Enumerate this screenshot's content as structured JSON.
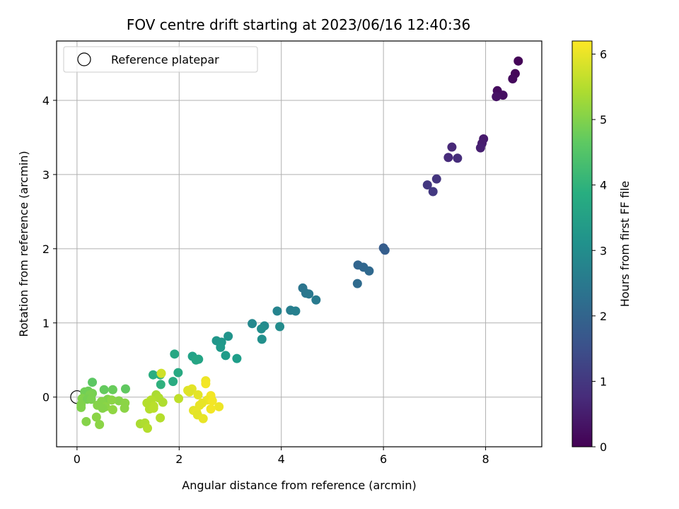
{
  "chart_data": {
    "type": "scatter",
    "title": "FOV centre drift starting at 2023/06/16 12:40:36",
    "xlabel": "Angular distance from reference (arcmin)",
    "ylabel": "Rotation from reference (arcmin)",
    "xlim": [
      -0.4,
      9.1
    ],
    "ylim": [
      -0.67,
      4.8
    ],
    "x_ticks": [
      0,
      2,
      4,
      6,
      8
    ],
    "y_ticks": [
      0,
      1,
      2,
      3,
      4
    ],
    "grid": true,
    "legend": {
      "placement": "top-left",
      "entries": [
        "Reference platepar"
      ]
    },
    "reference_point": {
      "x": 0,
      "y": 0
    },
    "colorbar": {
      "label": "Hours from first FF file",
      "colormap": "viridis",
      "range": [
        0,
        6.2
      ],
      "ticks": [
        0,
        1,
        2,
        3,
        4,
        5,
        6
      ]
    },
    "points": [
      {
        "x": 8.64,
        "y": 4.53,
        "c": 0.05
      },
      {
        "x": 8.58,
        "y": 4.36,
        "c": 0.1
      },
      {
        "x": 8.53,
        "y": 4.29,
        "c": 0.15
      },
      {
        "x": 8.23,
        "y": 4.13,
        "c": 0.2
      },
      {
        "x": 8.34,
        "y": 4.07,
        "c": 0.25
      },
      {
        "x": 8.21,
        "y": 4.05,
        "c": 0.3
      },
      {
        "x": 7.96,
        "y": 3.48,
        "c": 0.45
      },
      {
        "x": 7.93,
        "y": 3.42,
        "c": 0.5
      },
      {
        "x": 7.9,
        "y": 3.36,
        "c": 0.55
      },
      {
        "x": 7.34,
        "y": 3.37,
        "c": 0.7
      },
      {
        "x": 7.27,
        "y": 3.23,
        "c": 0.75
      },
      {
        "x": 7.45,
        "y": 3.22,
        "c": 0.8
      },
      {
        "x": 7.04,
        "y": 2.94,
        "c": 0.95
      },
      {
        "x": 6.86,
        "y": 2.86,
        "c": 1.0
      },
      {
        "x": 6.97,
        "y": 2.77,
        "c": 1.05
      },
      {
        "x": 6.0,
        "y": 2.01,
        "c": 1.8
      },
      {
        "x": 6.03,
        "y": 1.98,
        "c": 1.85
      },
      {
        "x": 5.5,
        "y": 1.78,
        "c": 2.0
      },
      {
        "x": 5.61,
        "y": 1.75,
        "c": 2.05
      },
      {
        "x": 5.72,
        "y": 1.7,
        "c": 2.1
      },
      {
        "x": 5.49,
        "y": 1.53,
        "c": 2.15
      },
      {
        "x": 4.42,
        "y": 1.47,
        "c": 2.4
      },
      {
        "x": 4.48,
        "y": 1.4,
        "c": 2.45
      },
      {
        "x": 4.54,
        "y": 1.39,
        "c": 2.5
      },
      {
        "x": 4.68,
        "y": 1.31,
        "c": 2.55
      },
      {
        "x": 4.18,
        "y": 1.17,
        "c": 2.65
      },
      {
        "x": 4.28,
        "y": 1.16,
        "c": 2.7
      },
      {
        "x": 3.92,
        "y": 1.16,
        "c": 2.8
      },
      {
        "x": 3.43,
        "y": 0.99,
        "c": 2.9
      },
      {
        "x": 3.67,
        "y": 0.96,
        "c": 2.95
      },
      {
        "x": 3.97,
        "y": 0.95,
        "c": 3.0
      },
      {
        "x": 3.61,
        "y": 0.92,
        "c": 3.05
      },
      {
        "x": 3.62,
        "y": 0.78,
        "c": 3.1
      },
      {
        "x": 2.96,
        "y": 0.82,
        "c": 3.2
      },
      {
        "x": 2.73,
        "y": 0.76,
        "c": 3.25
      },
      {
        "x": 2.83,
        "y": 0.74,
        "c": 3.3
      },
      {
        "x": 2.81,
        "y": 0.67,
        "c": 3.35
      },
      {
        "x": 2.91,
        "y": 0.56,
        "c": 3.4
      },
      {
        "x": 3.13,
        "y": 0.52,
        "c": 3.45
      },
      {
        "x": 2.26,
        "y": 0.55,
        "c": 3.55
      },
      {
        "x": 2.38,
        "y": 0.51,
        "c": 3.6
      },
      {
        "x": 2.33,
        "y": 0.5,
        "c": 3.65
      },
      {
        "x": 1.91,
        "y": 0.58,
        "c": 3.7
      },
      {
        "x": 1.98,
        "y": 0.33,
        "c": 3.75
      },
      {
        "x": 1.88,
        "y": 0.21,
        "c": 3.8
      },
      {
        "x": 1.49,
        "y": 0.3,
        "c": 3.85
      },
      {
        "x": 1.63,
        "y": 0.3,
        "c": 3.9
      },
      {
        "x": 1.64,
        "y": 0.17,
        "c": 3.95
      },
      {
        "x": 0.3,
        "y": 0.2,
        "c": 4.6
      },
      {
        "x": 0.95,
        "y": 0.11,
        "c": 4.65
      },
      {
        "x": 0.53,
        "y": 0.1,
        "c": 4.7
      },
      {
        "x": 0.7,
        "y": 0.1,
        "c": 4.75
      },
      {
        "x": 0.22,
        "y": 0.08,
        "c": 4.8
      },
      {
        "x": 0.15,
        "y": 0.07,
        "c": 4.85
      },
      {
        "x": 0.3,
        "y": 0.05,
        "c": 4.9
      },
      {
        "x": 0.25,
        "y": 0.03,
        "c": 4.95
      },
      {
        "x": 0.1,
        "y": -0.02,
        "c": 5.0
      },
      {
        "x": 0.2,
        "y": -0.03,
        "c": 4.9
      },
      {
        "x": 0.28,
        "y": -0.03,
        "c": 4.95
      },
      {
        "x": 0.6,
        "y": -0.03,
        "c": 5.0
      },
      {
        "x": 0.82,
        "y": -0.05,
        "c": 5.05
      },
      {
        "x": 0.68,
        "y": -0.04,
        "c": 5.1
      },
      {
        "x": 0.48,
        "y": -0.06,
        "c": 5.05
      },
      {
        "x": 0.94,
        "y": -0.08,
        "c": 5.1
      },
      {
        "x": 0.08,
        "y": -0.1,
        "c": 5.0
      },
      {
        "x": 0.4,
        "y": -0.11,
        "c": 5.05
      },
      {
        "x": 0.56,
        "y": -0.13,
        "c": 5.1
      },
      {
        "x": 0.08,
        "y": -0.14,
        "c": 5.0
      },
      {
        "x": 0.5,
        "y": -0.15,
        "c": 5.05
      },
      {
        "x": 0.93,
        "y": -0.15,
        "c": 5.1
      },
      {
        "x": 0.7,
        "y": -0.17,
        "c": 5.15
      },
      {
        "x": 0.38,
        "y": -0.27,
        "c": 5.1
      },
      {
        "x": 0.18,
        "y": -0.33,
        "c": 5.05
      },
      {
        "x": 0.44,
        "y": -0.37,
        "c": 5.1
      },
      {
        "x": 1.65,
        "y": 0.32,
        "c": 5.75
      },
      {
        "x": 1.55,
        "y": 0.03,
        "c": 5.4
      },
      {
        "x": 1.6,
        "y": -0.01,
        "c": 5.45
      },
      {
        "x": 1.45,
        "y": -0.04,
        "c": 5.5
      },
      {
        "x": 1.68,
        "y": -0.07,
        "c": 5.45
      },
      {
        "x": 1.37,
        "y": -0.08,
        "c": 5.5
      },
      {
        "x": 1.5,
        "y": -0.12,
        "c": 5.55
      },
      {
        "x": 1.42,
        "y": -0.16,
        "c": 5.5
      },
      {
        "x": 1.5,
        "y": -0.15,
        "c": 5.55
      },
      {
        "x": 1.63,
        "y": -0.28,
        "c": 5.5
      },
      {
        "x": 1.24,
        "y": -0.36,
        "c": 5.4
      },
      {
        "x": 1.33,
        "y": -0.35,
        "c": 5.45
      },
      {
        "x": 1.38,
        "y": -0.42,
        "c": 5.5
      },
      {
        "x": 1.99,
        "y": -0.02,
        "c": 5.6
      },
      {
        "x": 2.17,
        "y": 0.09,
        "c": 5.9
      },
      {
        "x": 2.25,
        "y": 0.11,
        "c": 5.95
      },
      {
        "x": 2.2,
        "y": 0.07,
        "c": 5.9
      },
      {
        "x": 2.37,
        "y": 0.03,
        "c": 5.95
      },
      {
        "x": 2.52,
        "y": 0.22,
        "c": 6.05
      },
      {
        "x": 2.52,
        "y": 0.18,
        "c": 6.1
      },
      {
        "x": 2.62,
        "y": 0.02,
        "c": 6.1
      },
      {
        "x": 2.55,
        "y": -0.04,
        "c": 6.05
      },
      {
        "x": 2.65,
        "y": -0.05,
        "c": 6.1
      },
      {
        "x": 2.45,
        "y": -0.08,
        "c": 6.0
      },
      {
        "x": 2.4,
        "y": -0.11,
        "c": 6.0
      },
      {
        "x": 2.78,
        "y": -0.13,
        "c": 6.05
      },
      {
        "x": 2.62,
        "y": -0.16,
        "c": 6.1
      },
      {
        "x": 2.28,
        "y": -0.18,
        "c": 5.95
      },
      {
        "x": 2.34,
        "y": -0.2,
        "c": 6.0
      },
      {
        "x": 2.36,
        "y": -0.24,
        "c": 5.95
      },
      {
        "x": 2.47,
        "y": -0.29,
        "c": 6.0
      }
    ]
  }
}
